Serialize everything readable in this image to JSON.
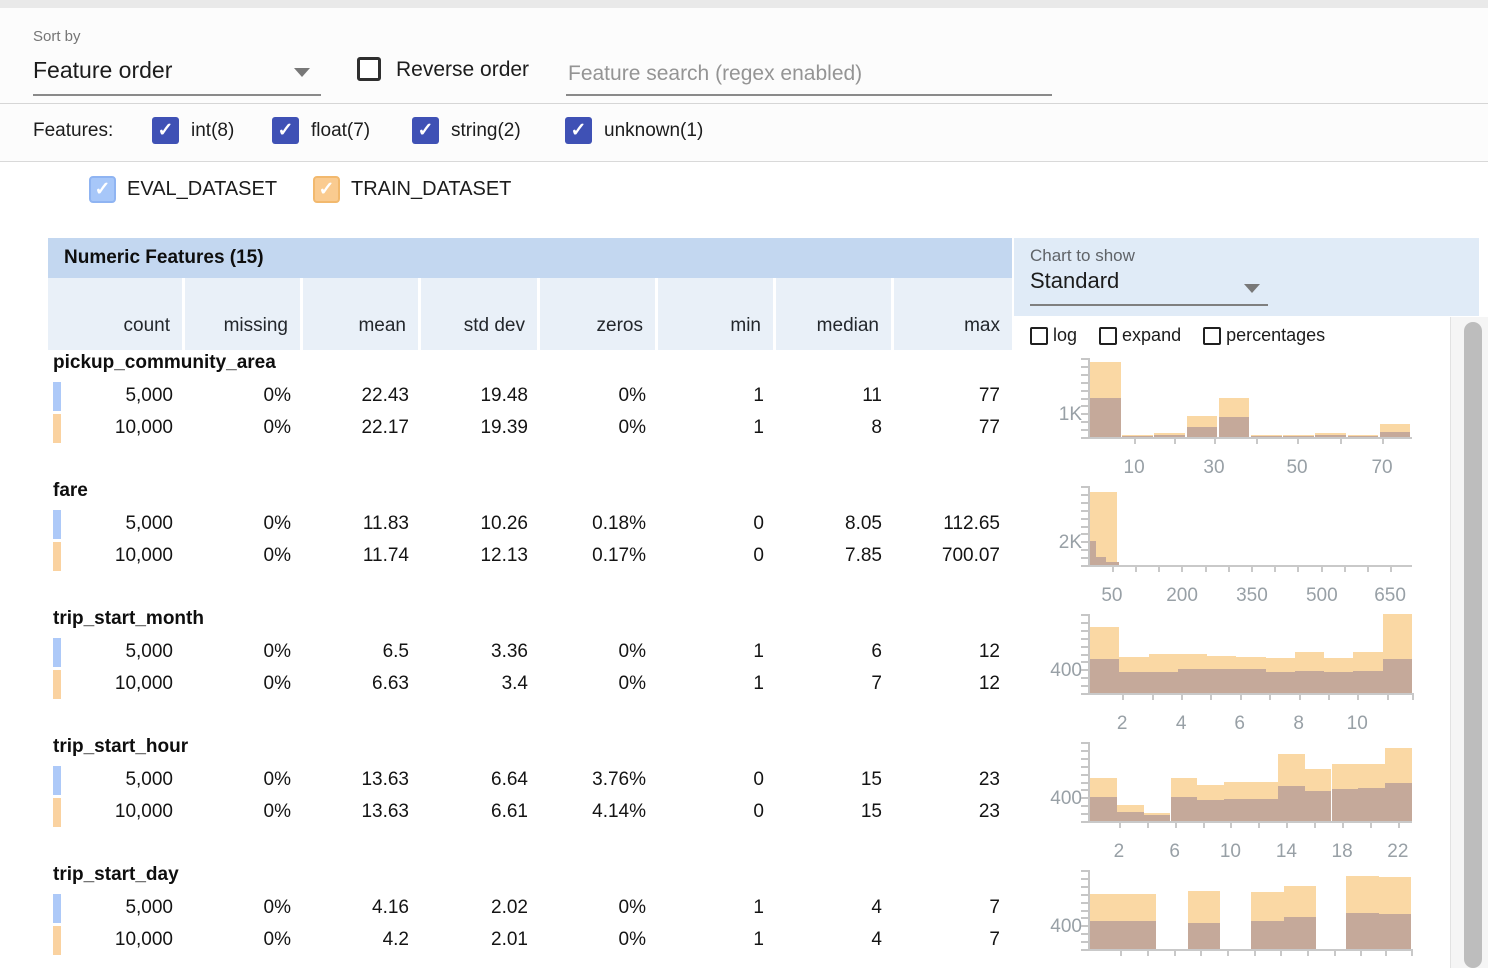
{
  "toolbar": {
    "sort_by_label": "Sort by",
    "sort_value": "Feature order",
    "reverse_label": "Reverse order",
    "search_placeholder": "Feature search (regex enabled)"
  },
  "features_bar": {
    "label": "Features:",
    "types": [
      {
        "label": "int(8)",
        "checked": true
      },
      {
        "label": "float(7)",
        "checked": true
      },
      {
        "label": "string(2)",
        "checked": true
      },
      {
        "label": "unknown(1)",
        "checked": true
      }
    ]
  },
  "datasets": [
    {
      "name": "EVAL_DATASET",
      "checked": true
    },
    {
      "name": "TRAIN_DATASET",
      "checked": true
    }
  ],
  "table": {
    "title": "Numeric Features (15)",
    "columns": [
      "count",
      "missing",
      "mean",
      "std dev",
      "zeros",
      "min",
      "median",
      "max"
    ]
  },
  "chart_controls": {
    "label": "Chart to show",
    "selected": "Standard",
    "options": [
      {
        "label": "log",
        "checked": false
      },
      {
        "label": "expand",
        "checked": false
      },
      {
        "label": "percentages",
        "checked": false
      }
    ]
  },
  "colors": {
    "accent_indigo": "#3F51B5",
    "eval_checkbox": "#A7C7F9",
    "train_checkbox": "#FACB90",
    "eval_swatch": "#ADC9F8",
    "train_swatch": "#FAD2A0",
    "bar_train": "#FAD8A4",
    "bar_overlap": "#C5A99A",
    "header_band": "#C3D7F0",
    "subheader_band": "#E9F0F8",
    "panel_blue": "#E0EBF7"
  },
  "features": [
    {
      "name": "pickup_community_area",
      "rows": [
        [
          "5,000",
          "0%",
          "22.43",
          "19.48",
          "0%",
          "1",
          "11",
          "77"
        ],
        [
          "10,000",
          "0%",
          "22.17",
          "19.39",
          "0%",
          "1",
          "8",
          "77"
        ]
      ],
      "chart": {
        "type": "histogram-overlay",
        "ylabel": "1K",
        "xlabels": [
          {
            "t": "10",
            "f": 0.137
          },
          {
            "t": "30",
            "f": 0.385
          },
          {
            "t": "50",
            "f": 0.643
          },
          {
            "t": "70",
            "f": 0.907
          }
        ],
        "ticks": [
          0.137,
          0.261,
          0.385,
          0.514,
          0.643,
          0.775,
          0.907
        ],
        "bars": [
          {
            "x": 0.0,
            "w": 0.095,
            "o": 0.95,
            "b": 0.49
          },
          {
            "x": 0.1,
            "w": 0.095,
            "o": 0.02,
            "b": 0.01
          },
          {
            "x": 0.2,
            "w": 0.095,
            "o": 0.05,
            "b": 0.03
          },
          {
            "x": 0.3,
            "w": 0.095,
            "o": 0.26,
            "b": 0.13
          },
          {
            "x": 0.4,
            "w": 0.095,
            "o": 0.5,
            "b": 0.25
          },
          {
            "x": 0.5,
            "w": 0.095,
            "o": 0.02,
            "b": 0.01
          },
          {
            "x": 0.6,
            "w": 0.095,
            "o": 0.02,
            "b": 0.01
          },
          {
            "x": 0.7,
            "w": 0.095,
            "o": 0.05,
            "b": 0.02
          },
          {
            "x": 0.8,
            "w": 0.095,
            "o": 0.02,
            "b": 0.01
          },
          {
            "x": 0.9,
            "w": 0.095,
            "o": 0.16,
            "b": 0.06
          }
        ]
      }
    },
    {
      "name": "fare",
      "rows": [
        [
          "5,000",
          "0%",
          "11.83",
          "10.26",
          "0.18%",
          "0",
          "8.05",
          "112.65"
        ],
        [
          "10,000",
          "0%",
          "11.74",
          "12.13",
          "0.17%",
          "0",
          "7.85",
          "700.07"
        ]
      ],
      "chart": {
        "type": "histogram-overlay",
        "ylabel": "2K",
        "xlabels": [
          {
            "t": "50",
            "f": 0.068
          },
          {
            "t": "200",
            "f": 0.286
          },
          {
            "t": "350",
            "f": 0.503
          },
          {
            "t": "500",
            "f": 0.72
          },
          {
            "t": "650",
            "f": 0.932
          }
        ],
        "ticks": [
          0.068,
          0.14,
          0.212,
          0.284,
          0.356,
          0.428,
          0.5,
          0.572,
          0.644,
          0.716,
          0.788,
          0.86,
          0.932
        ],
        "bars": [
          {
            "x": 0.0,
            "w": 0.085,
            "o": 0.92,
            "b": 0.0
          },
          {
            "x": 0.0,
            "w": 0.02,
            "o": 0.0,
            "b": 0.3
          },
          {
            "x": 0.02,
            "w": 0.03,
            "o": 0.0,
            "b": 0.1
          },
          {
            "x": 0.05,
            "w": 0.04,
            "o": 0.0,
            "b": 0.04
          }
        ]
      }
    },
    {
      "name": "trip_start_month",
      "rows": [
        [
          "5,000",
          "0%",
          "6.5",
          "3.36",
          "0%",
          "1",
          "6",
          "12"
        ],
        [
          "10,000",
          "0%",
          "6.63",
          "3.4",
          "0%",
          "1",
          "7",
          "12"
        ]
      ],
      "chart": {
        "type": "histogram-overlay",
        "ylabel": "400",
        "xlabels": [
          {
            "t": "2",
            "f": 0.1
          },
          {
            "t": "4",
            "f": 0.283
          },
          {
            "t": "6",
            "f": 0.465
          },
          {
            "t": "8",
            "f": 0.648
          },
          {
            "t": "10",
            "f": 0.83
          }
        ],
        "ticks": [
          0.1,
          0.192,
          0.283,
          0.374,
          0.465,
          0.557,
          0.648,
          0.739,
          0.83,
          0.922,
          0.999
        ],
        "bars": [
          {
            "x": 0.0,
            "w": 0.0909,
            "o": 0.83,
            "b": 0.43
          },
          {
            "x": 0.0909,
            "w": 0.0909,
            "o": 0.46,
            "b": 0.26
          },
          {
            "x": 0.1818,
            "w": 0.0909,
            "o": 0.5,
            "b": 0.27
          },
          {
            "x": 0.2727,
            "w": 0.0909,
            "o": 0.5,
            "b": 0.3
          },
          {
            "x": 0.3636,
            "w": 0.0909,
            "o": 0.47,
            "b": 0.3
          },
          {
            "x": 0.4545,
            "w": 0.0909,
            "o": 0.46,
            "b": 0.31
          },
          {
            "x": 0.5454,
            "w": 0.0909,
            "o": 0.44,
            "b": 0.26
          },
          {
            "x": 0.6363,
            "w": 0.0909,
            "o": 0.52,
            "b": 0.28
          },
          {
            "x": 0.7272,
            "w": 0.0909,
            "o": 0.44,
            "b": 0.26
          },
          {
            "x": 0.8181,
            "w": 0.0909,
            "o": 0.52,
            "b": 0.28
          },
          {
            "x": 0.909,
            "w": 0.091,
            "o": 1.0,
            "b": 0.43
          }
        ]
      }
    },
    {
      "name": "trip_start_hour",
      "rows": [
        [
          "5,000",
          "0%",
          "13.63",
          "6.64",
          "3.76%",
          "0",
          "15",
          "23"
        ],
        [
          "10,000",
          "0%",
          "13.63",
          "6.61",
          "4.14%",
          "0",
          "15",
          "23"
        ]
      ],
      "chart": {
        "type": "histogram-overlay",
        "ylabel": "400",
        "xlabels": [
          {
            "t": "2",
            "f": 0.09
          },
          {
            "t": "6",
            "f": 0.263
          },
          {
            "t": "10",
            "f": 0.436
          },
          {
            "t": "14",
            "f": 0.61
          },
          {
            "t": "18",
            "f": 0.783
          },
          {
            "t": "22",
            "f": 0.956
          }
        ],
        "ticks": [
          0.09,
          0.177,
          0.263,
          0.35,
          0.436,
          0.523,
          0.61,
          0.696,
          0.783,
          0.87,
          0.956
        ],
        "bars": [
          {
            "x": 0.0,
            "w": 0.0833,
            "o": 0.55,
            "b": 0.3
          },
          {
            "x": 0.0833,
            "w": 0.0833,
            "o": 0.2,
            "b": 0.12
          },
          {
            "x": 0.1666,
            "w": 0.0833,
            "o": 0.1,
            "b": 0.08
          },
          {
            "x": 0.25,
            "w": 0.0833,
            "o": 0.55,
            "b": 0.3
          },
          {
            "x": 0.3333,
            "w": 0.0833,
            "o": 0.45,
            "b": 0.26
          },
          {
            "x": 0.4166,
            "w": 0.0833,
            "o": 0.5,
            "b": 0.28
          },
          {
            "x": 0.5,
            "w": 0.0833,
            "o": 0.5,
            "b": 0.28
          },
          {
            "x": 0.5833,
            "w": 0.0833,
            "o": 0.85,
            "b": 0.44
          },
          {
            "x": 0.6666,
            "w": 0.0833,
            "o": 0.66,
            "b": 0.38
          },
          {
            "x": 0.75,
            "w": 0.0833,
            "o": 0.72,
            "b": 0.4
          },
          {
            "x": 0.8333,
            "w": 0.0833,
            "o": 0.72,
            "b": 0.42
          },
          {
            "x": 0.9166,
            "w": 0.0834,
            "o": 0.92,
            "b": 0.48
          }
        ]
      }
    },
    {
      "name": "trip_start_day",
      "rows": [
        [
          "5,000",
          "0%",
          "4.16",
          "2.02",
          "0%",
          "1",
          "4",
          "7"
        ],
        [
          "10,000",
          "0%",
          "4.2",
          "2.01",
          "0%",
          "1",
          "4",
          "7"
        ]
      ],
      "chart": {
        "type": "histogram-overlay",
        "ylabel": "400",
        "xlabels": [],
        "ticks": [
          0.093,
          0.177,
          0.261,
          0.342,
          0.425,
          0.509,
          0.59,
          0.674,
          0.758,
          0.839,
          0.916,
          0.997
        ],
        "bars": [
          {
            "x": 0.0,
            "w": 0.103,
            "o": 0.7,
            "b": 0.36
          },
          {
            "x": 0.103,
            "w": 0.103,
            "o": 0.7,
            "b": 0.35
          },
          {
            "x": 0.305,
            "w": 0.1,
            "o": 0.73,
            "b": 0.33
          },
          {
            "x": 0.5,
            "w": 0.103,
            "o": 0.72,
            "b": 0.36
          },
          {
            "x": 0.603,
            "w": 0.1,
            "o": 0.8,
            "b": 0.4
          },
          {
            "x": 0.795,
            "w": 0.103,
            "o": 0.93,
            "b": 0.46
          },
          {
            "x": 0.898,
            "w": 0.1,
            "o": 0.91,
            "b": 0.44
          }
        ]
      }
    }
  ]
}
